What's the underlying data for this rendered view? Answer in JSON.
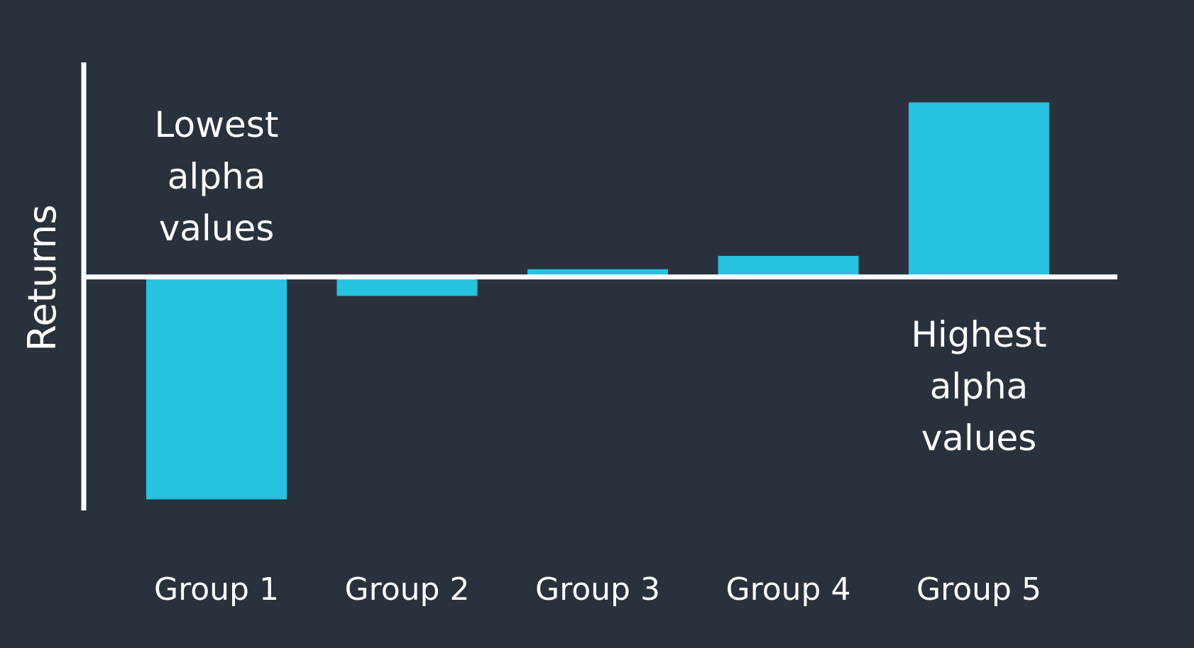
{
  "chart_data": {
    "type": "bar",
    "title": "",
    "xlabel": "",
    "ylabel": "Returns",
    "categories": [
      "Group 1",
      "Group 2",
      "Group 3",
      "Group 4",
      "Group 5"
    ],
    "values": [
      -10,
      -0.85,
      0.35,
      0.95,
      7.85
    ],
    "ylim": [
      -10.5,
      9.65
    ],
    "grid": false,
    "annotations": [
      {
        "lines": [
          "Lowest",
          "alpha",
          "values"
        ],
        "category": "Group 1",
        "position": "above-axis"
      },
      {
        "lines": [
          "Highest",
          "alpha",
          "values"
        ],
        "category": "Group 5",
        "position": "below-axis"
      }
    ],
    "colors": {
      "background": "#29323c",
      "bar": "#27c2e0",
      "axis": "#ffffff",
      "text": "#ffffff"
    }
  }
}
